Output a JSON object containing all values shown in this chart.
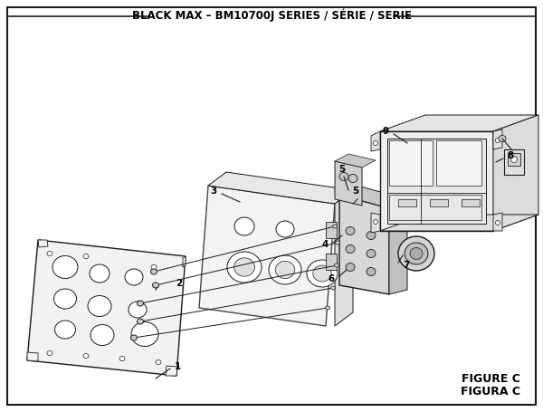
{
  "title": "BLACK MAX – BM10700J SERIES / SÉRIE / SERIE",
  "figure_label_1": "FIGURE C",
  "figure_label_2": "FIGURA C",
  "bg_color": "#ffffff",
  "border_color": "#1a1a1a",
  "line_color": "#1a1a1a",
  "title_fontsize": 8.5,
  "label_fontsize": 7.5,
  "fig_label_fontsize": 9
}
